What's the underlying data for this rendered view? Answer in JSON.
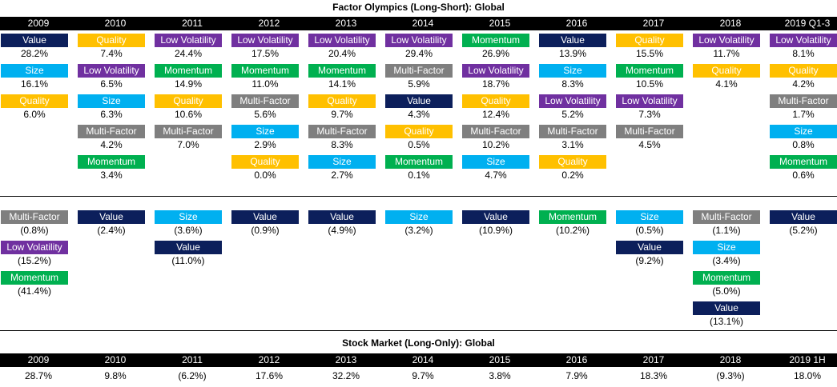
{
  "title_top": "Factor Olympics (Long-Short): Global",
  "title_bottom": "Stock Market (Long-Only): Global",
  "colors": {
    "Value": "#0c1f5b",
    "Quality": "#ffc000",
    "Low Volatility": "#7030a0",
    "Size": "#00b0f0",
    "Multi-Factor": "#7f7f7f",
    "Momentum": "#00b050"
  },
  "chart_data": [
    {
      "type": "table",
      "title": "Factor Olympics (Long-Short): Global",
      "categories": [
        "2009",
        "2010",
        "2011",
        "2012",
        "2013",
        "2014",
        "2015",
        "2016",
        "2017",
        "2018",
        "2019 Q1-3"
      ],
      "columns": [
        {
          "positive": [
            [
              "Value",
              "28.2%"
            ],
            [
              "Size",
              "16.1%"
            ],
            [
              "Quality",
              "6.0%"
            ]
          ],
          "negative": [
            [
              "Multi-Factor",
              "(0.8%)"
            ],
            [
              "Low Volatility",
              "(15.2%)"
            ],
            [
              "Momentum",
              "(41.4%)"
            ]
          ]
        },
        {
          "positive": [
            [
              "Quality",
              "7.4%"
            ],
            [
              "Low Volatility",
              "6.5%"
            ],
            [
              "Size",
              "6.3%"
            ],
            [
              "Multi-Factor",
              "4.2%"
            ],
            [
              "Momentum",
              "3.4%"
            ]
          ],
          "negative": [
            [
              "Value",
              "(2.4%)"
            ]
          ]
        },
        {
          "positive": [
            [
              "Low Volatility",
              "24.4%"
            ],
            [
              "Momentum",
              "14.9%"
            ],
            [
              "Quality",
              "10.6%"
            ],
            [
              "Multi-Factor",
              "7.0%"
            ]
          ],
          "negative": [
            [
              "Size",
              "(3.6%)"
            ],
            [
              "Value",
              "(11.0%)"
            ]
          ]
        },
        {
          "positive": [
            [
              "Low Volatility",
              "17.5%"
            ],
            [
              "Momentum",
              "11.0%"
            ],
            [
              "Multi-Factor",
              "5.6%"
            ],
            [
              "Size",
              "2.9%"
            ],
            [
              "Quality",
              "0.0%"
            ]
          ],
          "negative": [
            [
              "Value",
              "(0.9%)"
            ]
          ]
        },
        {
          "positive": [
            [
              "Low Volatility",
              "20.4%"
            ],
            [
              "Momentum",
              "14.1%"
            ],
            [
              "Quality",
              "9.7%"
            ],
            [
              "Multi-Factor",
              "8.3%"
            ],
            [
              "Size",
              "2.7%"
            ]
          ],
          "negative": [
            [
              "Value",
              "(4.9%)"
            ]
          ]
        },
        {
          "positive": [
            [
              "Low Volatility",
              "29.4%"
            ],
            [
              "Multi-Factor",
              "5.9%"
            ],
            [
              "Value",
              "4.3%"
            ],
            [
              "Quality",
              "0.5%"
            ],
            [
              "Momentum",
              "0.1%"
            ]
          ],
          "negative": [
            [
              "Size",
              "(3.2%)"
            ]
          ]
        },
        {
          "positive": [
            [
              "Momentum",
              "26.9%"
            ],
            [
              "Low Volatility",
              "18.7%"
            ],
            [
              "Quality",
              "12.4%"
            ],
            [
              "Multi-Factor",
              "10.2%"
            ],
            [
              "Size",
              "4.7%"
            ]
          ],
          "negative": [
            [
              "Value",
              "(10.9%)"
            ]
          ]
        },
        {
          "positive": [
            [
              "Value",
              "13.9%"
            ],
            [
              "Size",
              "8.3%"
            ],
            [
              "Low Volatility",
              "5.2%"
            ],
            [
              "Multi-Factor",
              "3.1%"
            ],
            [
              "Quality",
              "0.2%"
            ]
          ],
          "negative": [
            [
              "Momentum",
              "(10.2%)"
            ]
          ]
        },
        {
          "positive": [
            [
              "Quality",
              "15.5%"
            ],
            [
              "Momentum",
              "10.5%"
            ],
            [
              "Low Volatility",
              "7.3%"
            ],
            [
              "Multi-Factor",
              "4.5%"
            ]
          ],
          "negative": [
            [
              "Size",
              "(0.5%)"
            ],
            [
              "Value",
              "(9.2%)"
            ]
          ]
        },
        {
          "positive": [
            [
              "Low Volatility",
              "11.7%"
            ],
            [
              "Quality",
              "4.1%"
            ]
          ],
          "negative": [
            [
              "Multi-Factor",
              "(1.1%)"
            ],
            [
              "Size",
              "(3.4%)"
            ],
            [
              "Momentum",
              "(5.0%)"
            ],
            [
              "Value",
              "(13.1%)"
            ]
          ]
        },
        {
          "positive": [
            [
              "Low Volatility",
              "8.1%"
            ],
            [
              "Quality",
              "4.2%"
            ],
            [
              "Multi-Factor",
              "1.7%"
            ],
            [
              "Size",
              "0.8%"
            ],
            [
              "Momentum",
              "0.6%"
            ]
          ],
          "negative": [
            [
              "Value",
              "(5.2%)"
            ]
          ]
        }
      ]
    },
    {
      "type": "table",
      "title": "Stock Market (Long-Only): Global",
      "categories": [
        "2009",
        "2010",
        "2011",
        "2012",
        "2013",
        "2014",
        "2015",
        "2016",
        "2017",
        "2018",
        "2019 1H"
      ],
      "values": [
        "28.7%",
        "9.8%",
        "(6.2%)",
        "17.6%",
        "32.2%",
        "9.7%",
        "3.8%",
        "7.9%",
        "18.3%",
        "(9.3%)",
        "18.0%"
      ]
    }
  ]
}
